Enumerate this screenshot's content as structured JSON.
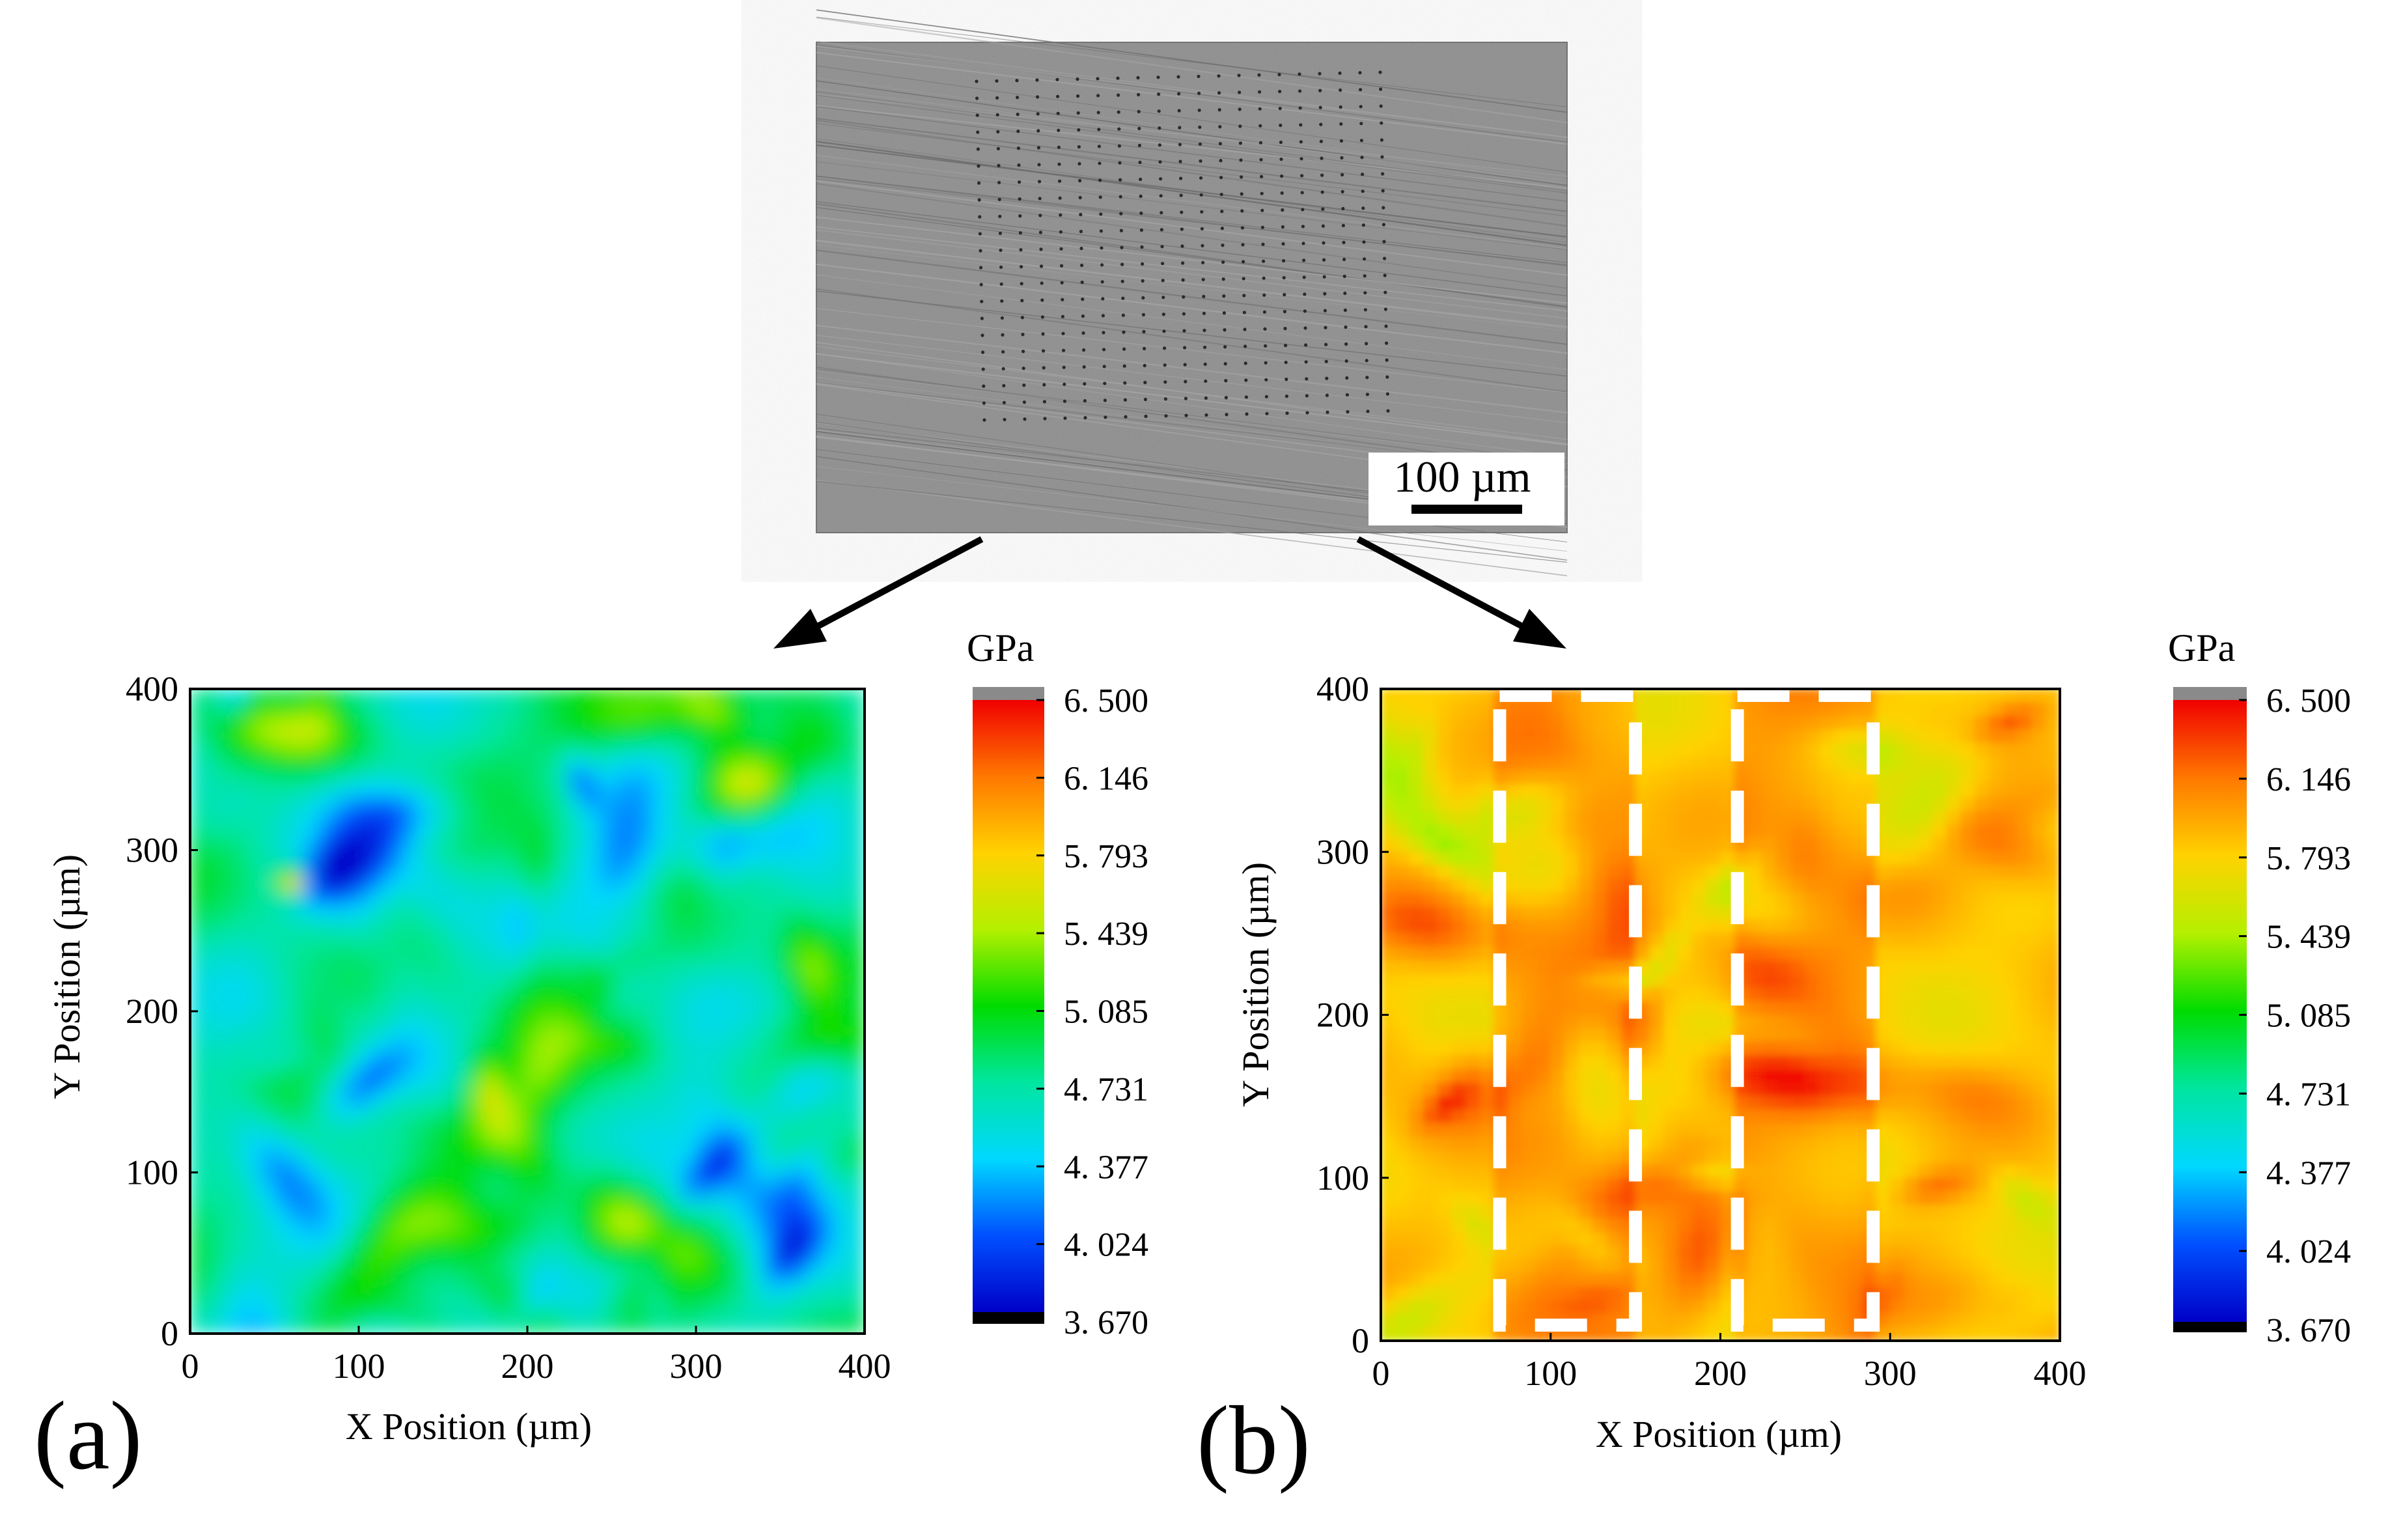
{
  "micrograph": {
    "scale_bar_label": "100 µm"
  },
  "chart_data": [
    {
      "panel_label": "(a)",
      "type": "heatmap",
      "xlabel": "X Position (µm)",
      "ylabel": "Y Position (µm)",
      "xlim": [
        0,
        400
      ],
      "ylim": [
        0,
        400
      ],
      "x_ticks": [
        0,
        100,
        200,
        300,
        400
      ],
      "y_ticks": [
        0,
        100,
        200,
        300,
        400
      ],
      "colorbar": {
        "title": "GPa",
        "range": [
          3.67,
          6.5
        ],
        "tick_labels": [
          "6. 500",
          "6. 146",
          "5. 793",
          "5. 439",
          "5. 085",
          "4. 731",
          "4. 377",
          "4. 024",
          "3. 670"
        ]
      },
      "description_values": {
        "dominant_range_gpa": [
          4.2,
          5.3
        ],
        "hotspot": {
          "x": 60,
          "y": 280,
          "value": 6.3
        }
      }
    },
    {
      "panel_label": "(b)",
      "type": "heatmap",
      "xlabel": "X Position (µm)",
      "ylabel": "Y Position (µm)",
      "xlim": [
        0,
        400
      ],
      "ylim": [
        0,
        400
      ],
      "x_ticks": [
        0,
        100,
        200,
        300,
        400
      ],
      "y_ticks": [
        0,
        100,
        200,
        300,
        400
      ],
      "colorbar": {
        "title": "GPa",
        "range": [
          3.67,
          6.5
        ],
        "tick_labels": [
          "6. 500",
          "6. 146",
          "5. 793",
          "5. 439",
          "5. 085",
          "4. 731",
          "4. 377",
          "4. 024",
          "3. 670"
        ]
      },
      "description_values": {
        "dominant_range_gpa": [
          5.6,
          6.4
        ],
        "highlight_bands_x_um": [
          [
            70,
            150
          ],
          [
            210,
            290
          ]
        ]
      }
    }
  ]
}
